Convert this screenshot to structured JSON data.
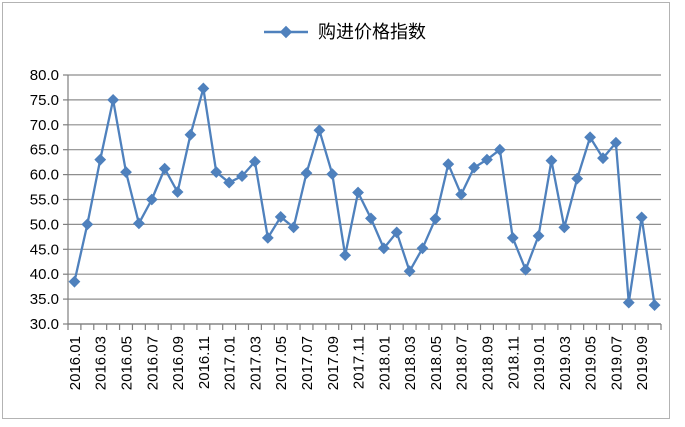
{
  "window": {
    "background": "#ffffff",
    "frame_border_color": "#b3b3b3"
  },
  "chart_data": {
    "type": "line",
    "title": "",
    "legend": "购进价格指数",
    "legend_position": "top-center",
    "grid": "horizontal",
    "ylim": [
      30,
      80
    ],
    "y_step": 5,
    "y_tick_labels": [
      "80.0",
      "75.0",
      "70.0",
      "65.0",
      "60.0",
      "55.0",
      "50.0",
      "45.0",
      "40.0",
      "35.0",
      "30.0"
    ],
    "x": [
      "2016.01",
      "2016.02",
      "2016.03",
      "2016.04",
      "2016.05",
      "2016.06",
      "2016.07",
      "2016.08",
      "2016.09",
      "2016.10",
      "2016.11",
      "2016.12",
      "2017.01",
      "2017.02",
      "2017.03",
      "2017.04",
      "2017.05",
      "2017.06",
      "2017.07",
      "2017.08",
      "2017.09",
      "2017.10",
      "2017.11",
      "2017.12",
      "2018.01",
      "2018.02",
      "2018.03",
      "2018.04",
      "2018.05",
      "2018.06",
      "2018.07",
      "2018.08",
      "2018.09",
      "2018.10",
      "2018.11",
      "2018.12",
      "2019.01",
      "2019.02",
      "2019.03",
      "2019.04",
      "2019.05",
      "2019.06",
      "2019.07",
      "2019.08",
      "2019.09",
      "2019.10"
    ],
    "x_tick_labels": [
      "2016.01",
      "2016.03",
      "2016.05",
      "2016.07",
      "2016.09",
      "2016.11",
      "2017.01",
      "2017.03",
      "2017.05",
      "2017.07",
      "2017.09",
      "2017.11",
      "2018.01",
      "2018.03",
      "2018.05",
      "2018.07",
      "2018.09",
      "2018.11",
      "2019.01",
      "2019.03",
      "2019.05",
      "2019.07",
      "2019.09"
    ],
    "series": [
      {
        "name": "购进价格指数",
        "color": "#4f81bd",
        "marker": "diamond",
        "values": [
          38.5,
          50.0,
          63.0,
          75.0,
          60.5,
          50.2,
          55.0,
          61.2,
          56.5,
          68.0,
          77.3,
          60.5,
          58.4,
          59.7,
          62.6,
          47.3,
          51.5,
          49.4,
          60.3,
          68.9,
          60.1,
          43.8,
          56.4,
          51.2,
          45.2,
          48.4,
          40.6,
          45.2,
          51.1,
          62.1,
          56.0,
          61.4,
          63.0,
          65.0,
          47.3,
          40.9,
          47.7,
          62.8,
          49.4,
          59.2,
          67.5,
          63.3,
          66.4,
          34.3,
          51.4,
          33.8
        ]
      }
    ],
    "style": {
      "grid_color": "#8e8e8e",
      "axis_color": "#7f7f7f",
      "text_color": "#000000",
      "tick_font_size": 15
    }
  }
}
